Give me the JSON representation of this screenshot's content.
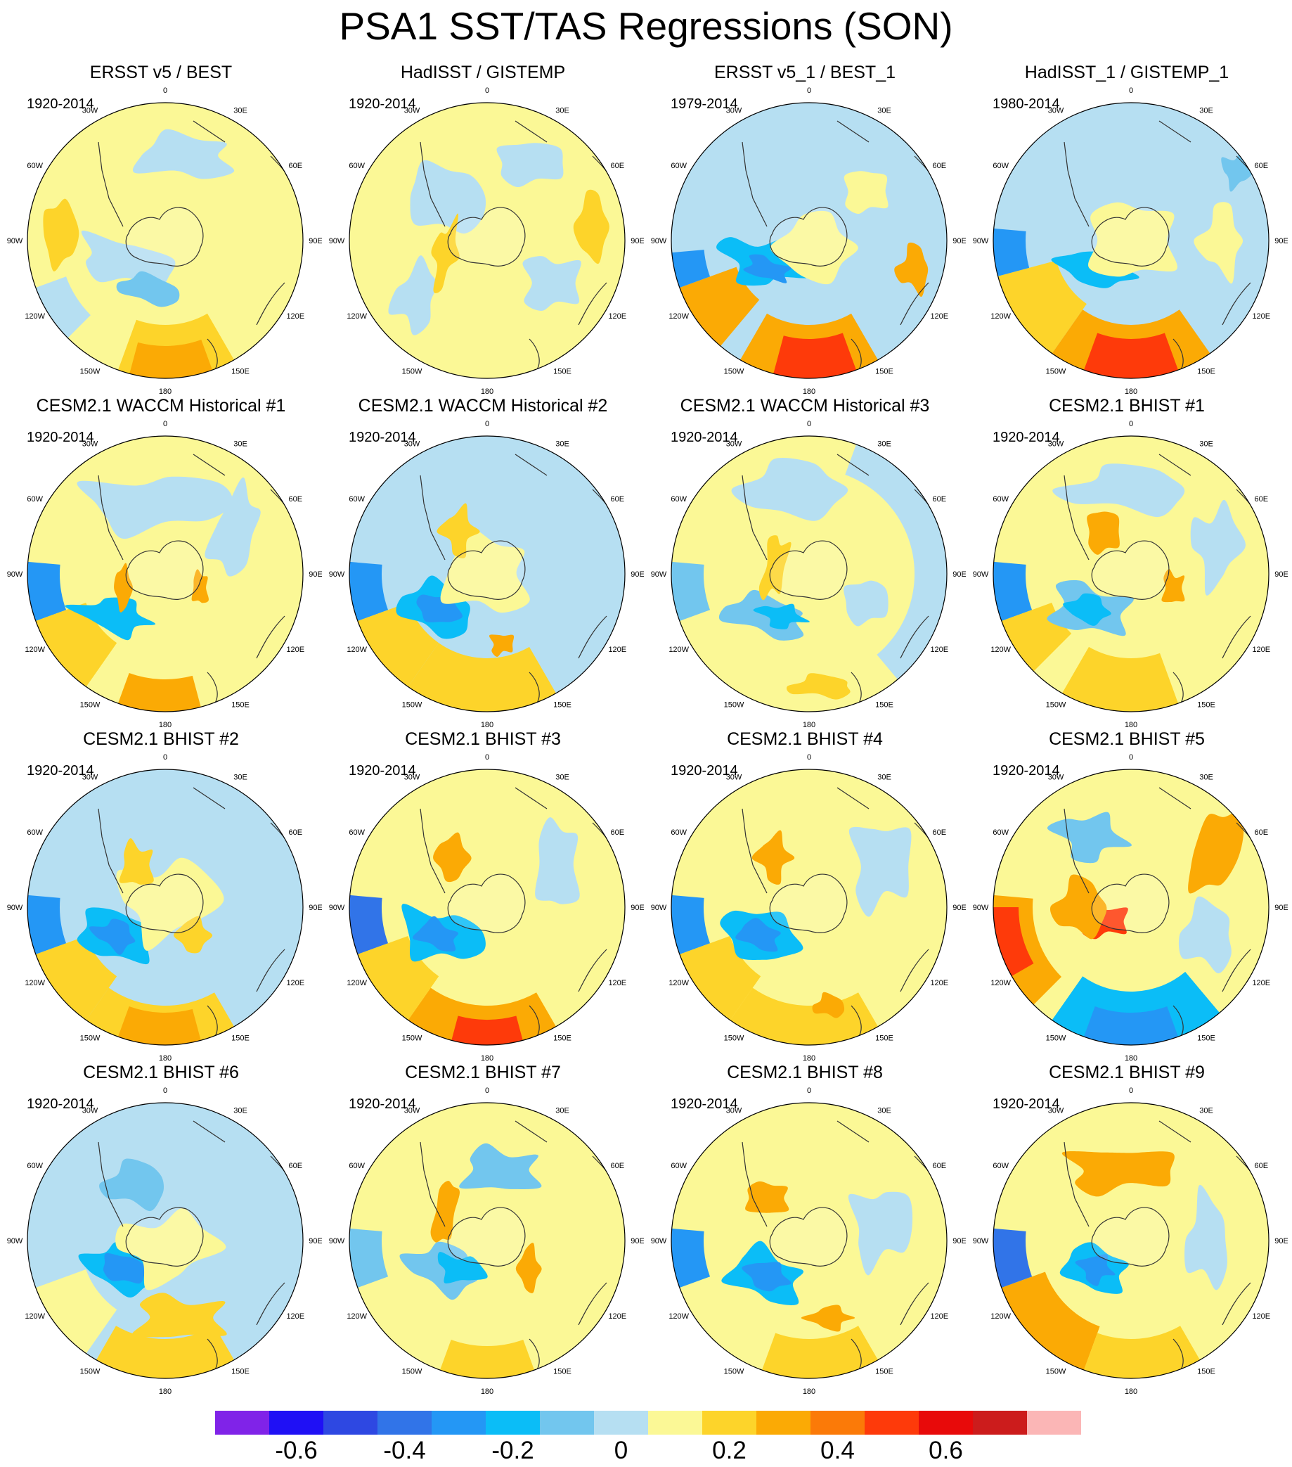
{
  "title": "PSA1 SST/TAS Regressions (SON)",
  "longitude_labels": [
    "0",
    "30E",
    "60E",
    "90E",
    "120E",
    "150E",
    "180",
    "150W",
    "120W",
    "90W",
    "60W",
    "30W"
  ],
  "panels": [
    {
      "title": "ERSST v5 / BEST",
      "period": "1920-2014"
    },
    {
      "title": "HadISST / GISTEMP",
      "period": "1920-2014"
    },
    {
      "title": "ERSST v5_1 / BEST_1",
      "period": "1979-2014"
    },
    {
      "title": "HadISST_1 / GISTEMP_1",
      "period": "1980-2014"
    },
    {
      "title": "CESM2.1 WACCM Historical #1",
      "period": "1920-2014"
    },
    {
      "title": "CESM2.1 WACCM Historical #2",
      "period": "1920-2014"
    },
    {
      "title": "CESM2.1 WACCM Historical #3",
      "period": "1920-2014"
    },
    {
      "title": "CESM2.1 BHIST #1",
      "period": "1920-2014"
    },
    {
      "title": "CESM2.1 BHIST #2",
      "period": "1920-2014"
    },
    {
      "title": "CESM2.1 BHIST #3",
      "period": "1920-2014"
    },
    {
      "title": "CESM2.1 BHIST #4",
      "period": "1920-2014"
    },
    {
      "title": "CESM2.1 BHIST #5",
      "period": "1920-2014"
    },
    {
      "title": "CESM2.1 BHIST #6",
      "period": "1920-2014"
    },
    {
      "title": "CESM2.1 BHIST #7",
      "period": "1920-2014"
    },
    {
      "title": "CESM2.1 BHIST #8",
      "period": "1920-2014"
    },
    {
      "title": "CESM2.1 BHIST #9",
      "period": "1920-2014"
    }
  ],
  "colorbar": {
    "colors": [
      "#8023e8",
      "#1f10f5",
      "#2e48e2",
      "#3174e8",
      "#2497f5",
      "#0bbdf7",
      "#72c6ee",
      "#b6dff2",
      "#fbf896",
      "#fdd42a",
      "#fbaa05",
      "#fb7a08",
      "#fe3a0a",
      "#e80a0a",
      "#cc1c1c",
      "#fbb6b6"
    ],
    "tick_labels": [
      "-0.6",
      "-0.4",
      "-0.2",
      "0",
      "0.2",
      "0.4",
      "0.6"
    ],
    "tick_values": [
      -0.6,
      -0.4,
      -0.2,
      0,
      0.2,
      0.4,
      0.6
    ]
  },
  "palette": {
    "neutral_positive": "#fbf896",
    "neutral_negative": "#b6dff2",
    "land_outline": "#333333"
  }
}
